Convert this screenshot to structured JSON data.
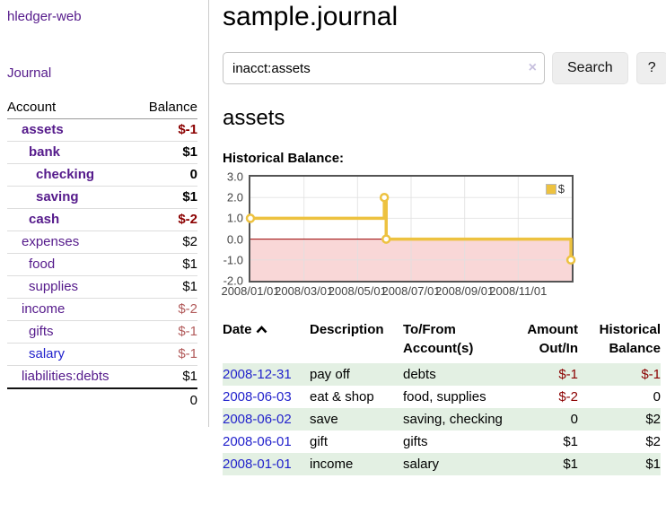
{
  "app": {
    "title": "hledger-web"
  },
  "sidebar": {
    "journal_link": "Journal",
    "table": {
      "account_header": "Account",
      "balance_header": "Balance",
      "rows": [
        {
          "account": "assets",
          "balance": "$-1"
        },
        {
          "account": "bank",
          "balance": "$1"
        },
        {
          "account": "checking",
          "balance": "0"
        },
        {
          "account": "saving",
          "balance": "$1"
        },
        {
          "account": "cash",
          "balance": "$-2"
        },
        {
          "account": "expenses",
          "balance": "$2"
        },
        {
          "account": "food",
          "balance": "$1"
        },
        {
          "account": "supplies",
          "balance": "$1"
        },
        {
          "account": "income",
          "balance": "$-2"
        },
        {
          "account": "gifts",
          "balance": "$-1"
        },
        {
          "account": "salary",
          "balance": "$-1"
        },
        {
          "account": "liabilities:debts",
          "balance": "$1"
        }
      ],
      "total": "0"
    }
  },
  "header": {
    "title": "sample.journal"
  },
  "search": {
    "value": "inacct:assets",
    "clear_icon": "×",
    "button_label": "Search",
    "help_label": "?"
  },
  "account_page": {
    "title": "assets",
    "chart_label": "Historical Balance:"
  },
  "chart_data": {
    "type": "line",
    "step": true,
    "title": "Historical Balance:",
    "legend": "$",
    "series": [
      {
        "name": "$",
        "color": "#edc240",
        "points": [
          {
            "date": "2008-01-01",
            "x_months": 0,
            "y": 1
          },
          {
            "date": "2008-06-01",
            "x_months": 5.0,
            "y": 2
          },
          {
            "date": "2008-06-03",
            "x_months": 5.07,
            "y": 0
          },
          {
            "date": "2008-12-31",
            "x_months": 11.97,
            "y": -1
          }
        ]
      }
    ],
    "x_axis": {
      "range_months": 12,
      "ticks": [
        {
          "label": "2008/01/01",
          "m": 0
        },
        {
          "label": "2008/03/01",
          "m": 2
        },
        {
          "label": "2008/05/01",
          "m": 4
        },
        {
          "label": "2008/07/01",
          "m": 6
        },
        {
          "label": "2008/09/01",
          "m": 8
        },
        {
          "label": "2008/11/01",
          "m": 10
        }
      ]
    },
    "y_axis": {
      "min": -2,
      "max": 3,
      "ticks": [
        "3.0",
        "2.0",
        "1.0",
        "0.0",
        "-1.0",
        "-2.0"
      ]
    },
    "colors": {
      "negative_region": "#f9d7d7",
      "zero_line": "#990000",
      "grid": "#e0e0e0"
    }
  },
  "register": {
    "columns": {
      "date": "Date",
      "description": "Description",
      "accounts": "To/From Account(s)",
      "amount": "Amount Out/In",
      "balance": "Historical Balance"
    },
    "rows": [
      {
        "date": "2008-12-31",
        "description": "pay off",
        "accounts": "debts",
        "amount": "$-1",
        "balance": "$-1"
      },
      {
        "date": "2008-06-03",
        "description": "eat & shop",
        "accounts": "food, supplies",
        "amount": "$-2",
        "balance": "0"
      },
      {
        "date": "2008-06-02",
        "description": "save",
        "accounts": "saving, checking",
        "amount": "0",
        "balance": "$2"
      },
      {
        "date": "2008-06-01",
        "description": "gift",
        "accounts": "gifts",
        "amount": "$1",
        "balance": "$2"
      },
      {
        "date": "2008-01-01",
        "description": "income",
        "accounts": "salary",
        "amount": "$1",
        "balance": "$1"
      }
    ]
  }
}
